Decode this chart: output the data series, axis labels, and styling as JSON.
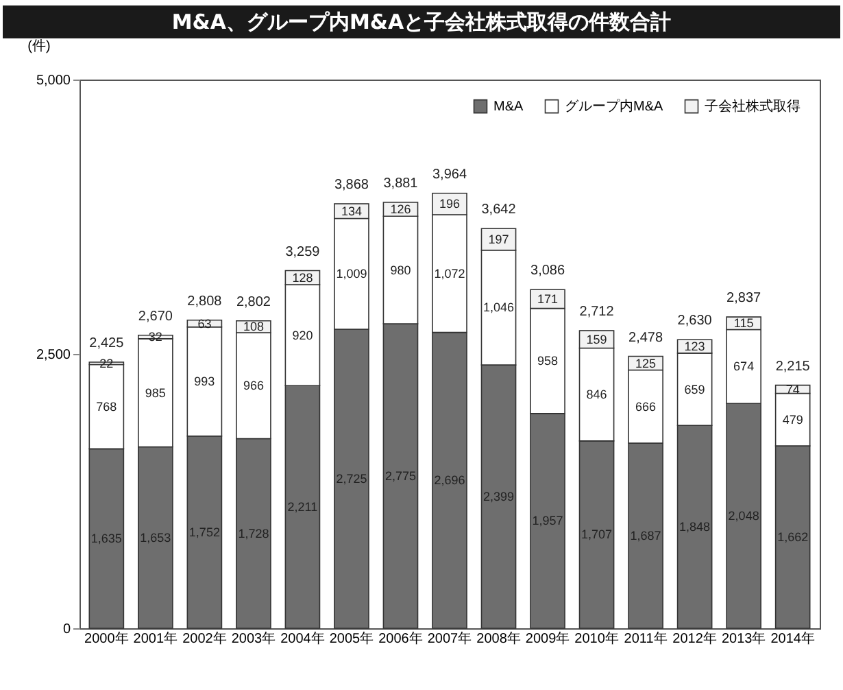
{
  "chart_data": {
    "type": "bar",
    "stacked": true,
    "title": "M&A、グループ内M&Aと子会社株式取得の件数合計",
    "ylabel": "(件)",
    "categories": [
      "2000年",
      "2001年",
      "2002年",
      "2003年",
      "2004年",
      "2005年",
      "2006年",
      "2007年",
      "2008年",
      "2009年",
      "2010年",
      "2011年",
      "2012年",
      "2013年",
      "2014年"
    ],
    "series": [
      {
        "name": "M&A",
        "color": "#6e6e6e",
        "values": [
          1635,
          1653,
          1752,
          1728,
          2211,
          2725,
          2775,
          2696,
          2399,
          1957,
          1707,
          1687,
          1848,
          2048,
          1662
        ],
        "value_labels": [
          "1,635",
          "1,653",
          "1,752",
          "1,728",
          "2,211",
          "2,725",
          "2,775",
          "2,696",
          "2,399",
          "1,957",
          "1,707",
          "1,687",
          "1,848",
          "2,048",
          "1,662"
        ]
      },
      {
        "name": "グループ内M&A",
        "color": "#ffffff",
        "values": [
          768,
          985,
          993,
          966,
          920,
          1009,
          980,
          1072,
          1046,
          958,
          846,
          666,
          659,
          674,
          479
        ],
        "value_labels": [
          "768",
          "985",
          "993",
          "966",
          "920",
          "1,009",
          "980",
          "1,072",
          "1,046",
          "958",
          "846",
          "666",
          "659",
          "674",
          "479"
        ]
      },
      {
        "name": "子会社株式取得",
        "color": "#f2f2f2",
        "values": [
          22,
          32,
          63,
          108,
          128,
          134,
          126,
          196,
          197,
          171,
          159,
          125,
          123,
          115,
          74
        ],
        "value_labels": [
          "22",
          "32",
          "63",
          "108",
          "128",
          "134",
          "126",
          "196",
          "197",
          "171",
          "159",
          "125",
          "123",
          "115",
          "74"
        ]
      }
    ],
    "totals": [
      "2,425",
      "2,670",
      "2,808",
      "2,802",
      "3,259",
      "3,868",
      "3,881",
      "3,964",
      "3,642",
      "3,086",
      "2,712",
      "2,478",
      "2,630",
      "2,837",
      "2,215"
    ],
    "ylim": [
      0,
      5000
    ],
    "yticks": [
      0,
      {
        "value": 2500,
        "label": "2,500"
      },
      {
        "value": 5000,
        "label": "5,000"
      }
    ],
    "grid": false,
    "legend": "top right"
  }
}
